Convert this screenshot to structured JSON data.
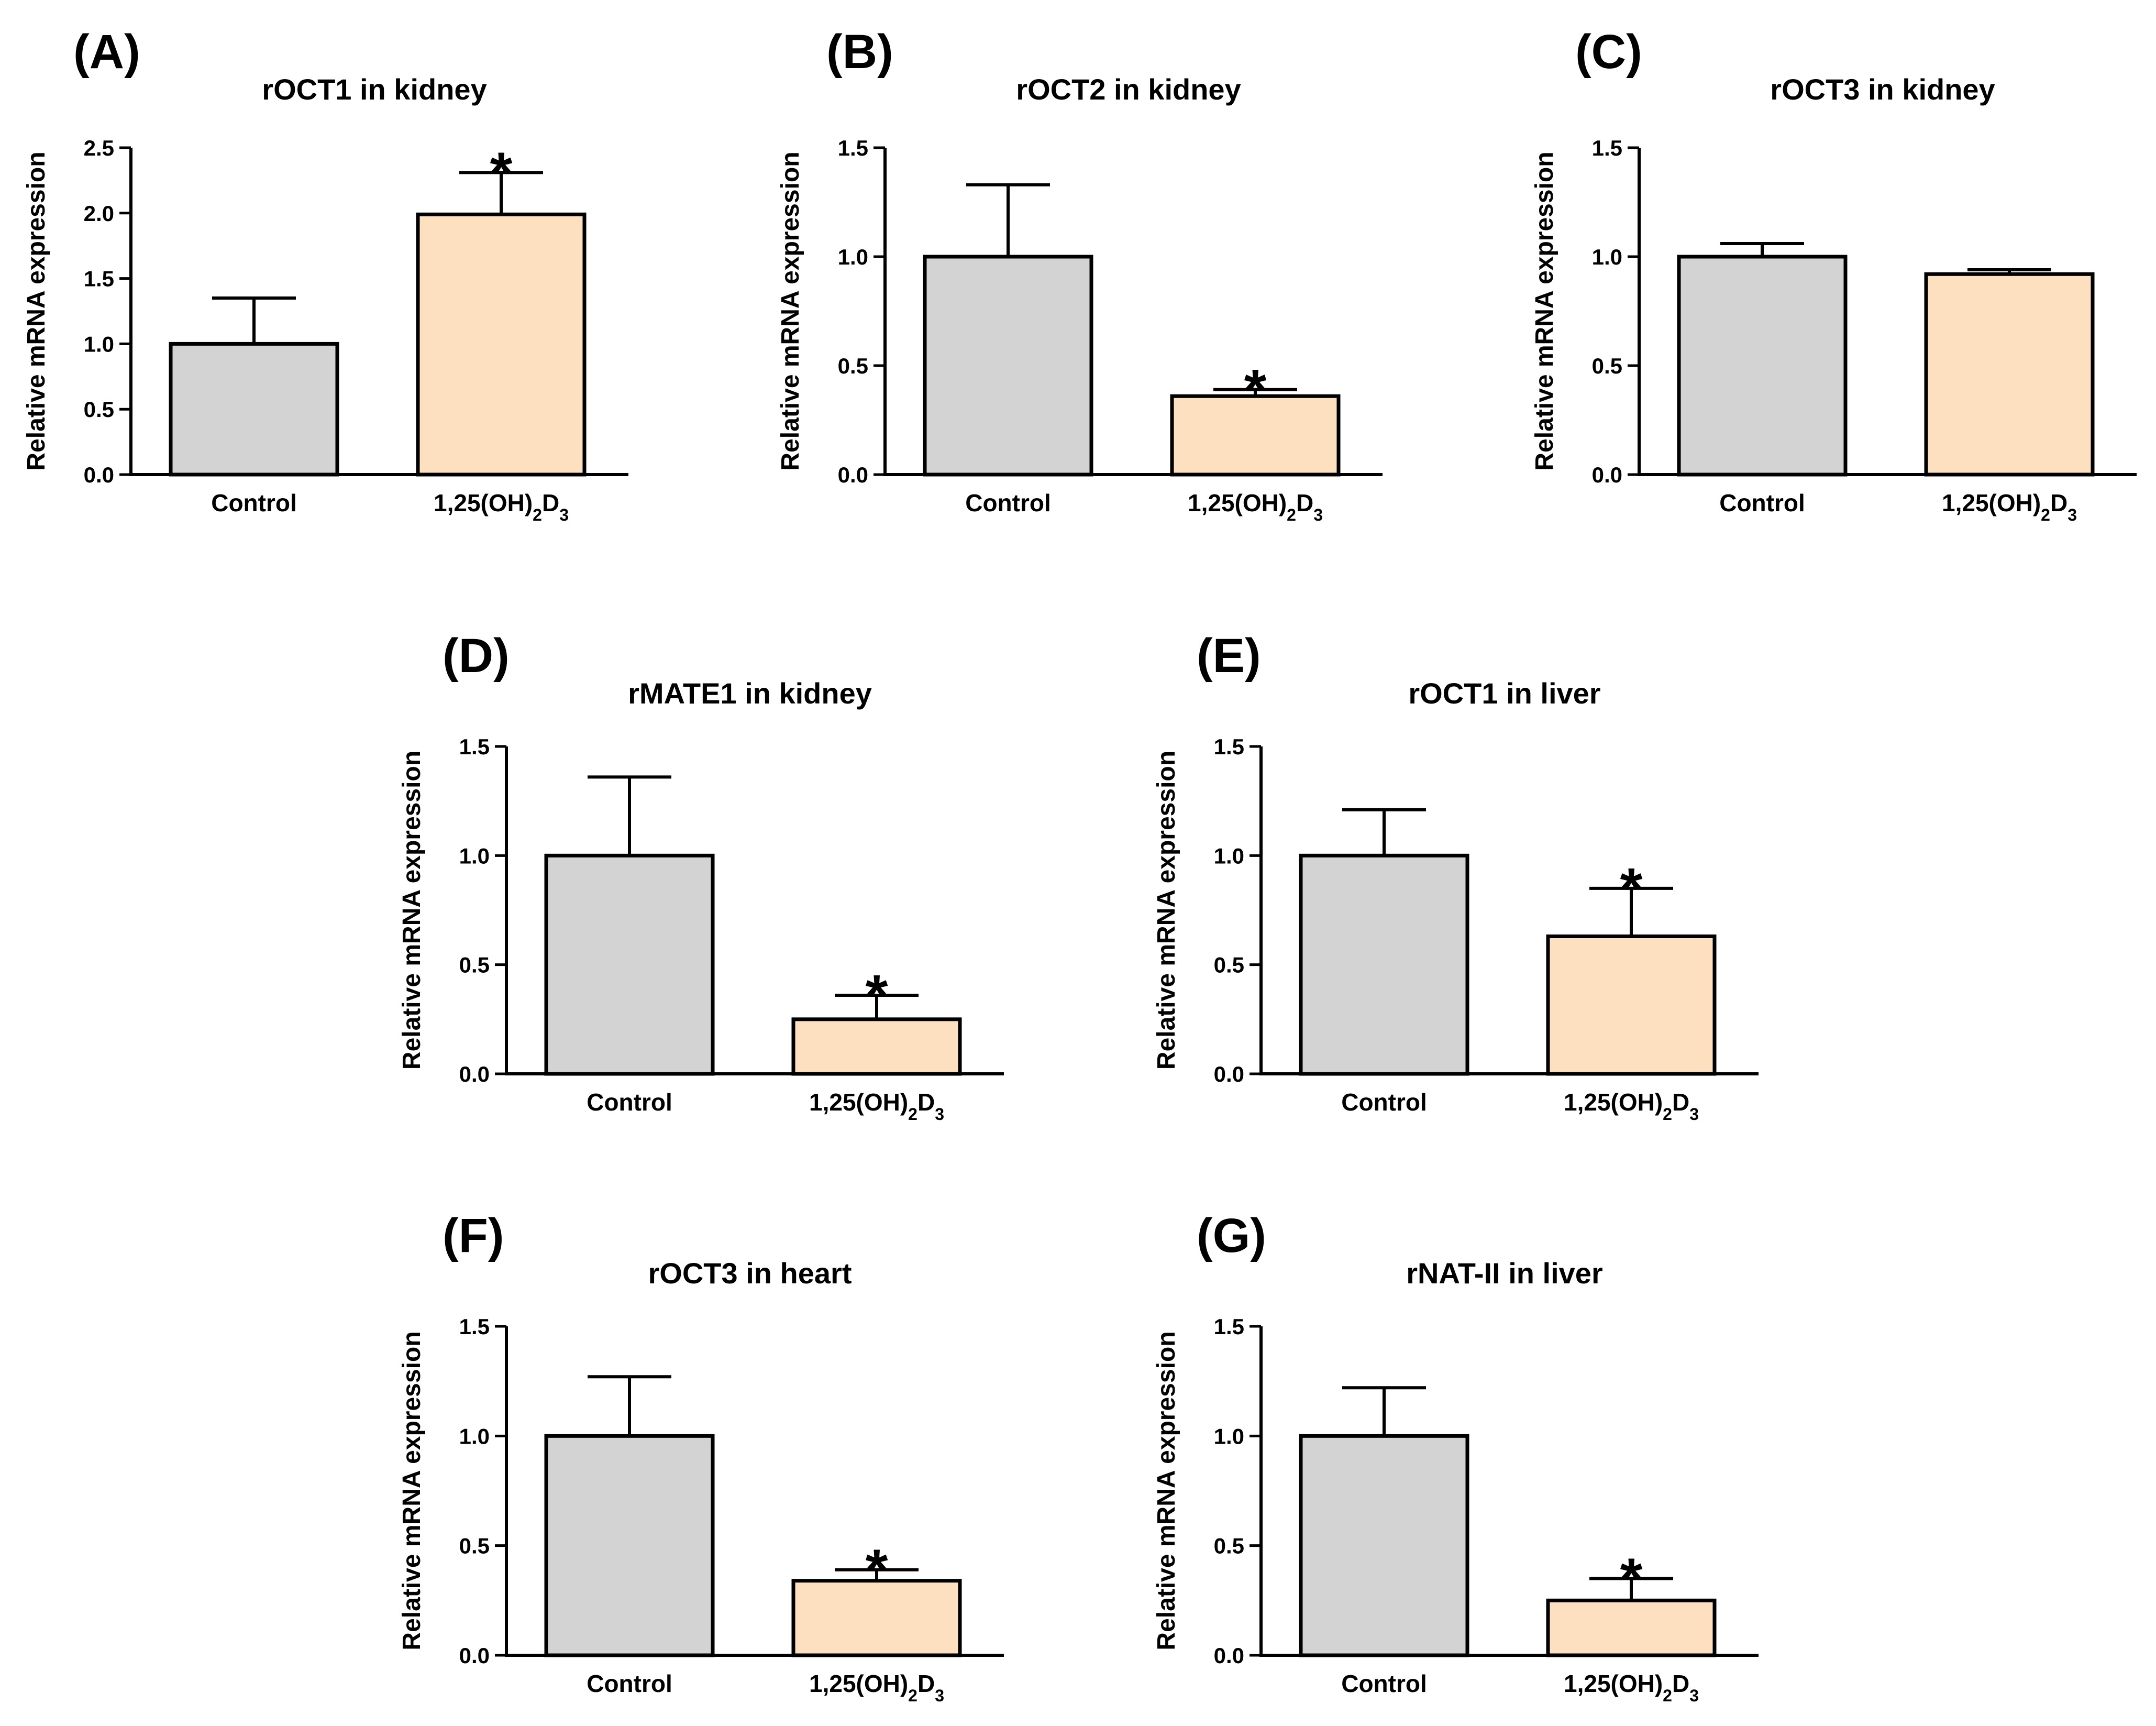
{
  "chart_data": [
    {
      "panel": "(A)",
      "type": "bar",
      "title": "rOCT1 in kidney",
      "ylabel": "Relative mRNA expression",
      "categories": [
        "Control",
        "1,25(OH)2D3"
      ],
      "values": [
        1.0,
        1.99
      ],
      "errors": [
        0.35,
        0.32
      ],
      "significance": [
        "",
        "*"
      ],
      "ylim": [
        0,
        2.5
      ],
      "yticks": [
        "0.0",
        "0.5",
        "1.0",
        "1.5",
        "2.0",
        "2.5"
      ],
      "colors": [
        "#d3d3d3",
        "#fde0c0"
      ]
    },
    {
      "panel": "(B)",
      "type": "bar",
      "title": "rOCT2 in kidney",
      "ylabel": "Relative mRNA expression",
      "categories": [
        "Control",
        "1,25(OH)2D3"
      ],
      "values": [
        1.0,
        0.36
      ],
      "errors": [
        0.33,
        0.03
      ],
      "significance": [
        "",
        "*"
      ],
      "ylim": [
        0,
        1.5
      ],
      "yticks": [
        "0.0",
        "0.5",
        "1.0",
        "1.5"
      ],
      "colors": [
        "#d3d3d3",
        "#fde0c0"
      ]
    },
    {
      "panel": "(C)",
      "type": "bar",
      "title": "rOCT3 in kidney",
      "ylabel": "Relative mRNA expression",
      "categories": [
        "Control",
        "1,25(OH)2D3"
      ],
      "values": [
        1.0,
        0.92
      ],
      "errors": [
        0.06,
        0.02
      ],
      "significance": [
        "",
        ""
      ],
      "ylim": [
        0,
        1.5
      ],
      "yticks": [
        "0.0",
        "0.5",
        "1.0",
        "1.5"
      ],
      "colors": [
        "#d3d3d3",
        "#fde0c0"
      ]
    },
    {
      "panel": "(D)",
      "type": "bar",
      "title": "rMATE1 in kidney",
      "ylabel": "Relative mRNA expression",
      "categories": [
        "Control",
        "1,25(OH)2D3"
      ],
      "values": [
        1.0,
        0.25
      ],
      "errors": [
        0.36,
        0.11
      ],
      "significance": [
        "",
        "*"
      ],
      "ylim": [
        0,
        1.5
      ],
      "yticks": [
        "0.0",
        "0.5",
        "1.0",
        "1.5"
      ],
      "colors": [
        "#d3d3d3",
        "#fde0c0"
      ]
    },
    {
      "panel": "(E)",
      "type": "bar",
      "title": "rOCT1 in liver",
      "ylabel": "Relative mRNA expression",
      "categories": [
        "Control",
        "1,25(OH)2D3"
      ],
      "values": [
        1.0,
        0.63
      ],
      "errors": [
        0.21,
        0.22
      ],
      "significance": [
        "",
        "*"
      ],
      "ylim": [
        0,
        1.5
      ],
      "yticks": [
        "0.0",
        "0.5",
        "1.0",
        "1.5"
      ],
      "colors": [
        "#d3d3d3",
        "#fde0c0"
      ]
    },
    {
      "panel": "(F)",
      "type": "bar",
      "title": "rOCT3 in heart",
      "ylabel": "Relative mRNA expression",
      "categories": [
        "Control",
        "1,25(OH)2D3"
      ],
      "values": [
        1.0,
        0.34
      ],
      "errors": [
        0.27,
        0.05
      ],
      "significance": [
        "",
        "*"
      ],
      "ylim": [
        0,
        1.5
      ],
      "yticks": [
        "0.0",
        "0.5",
        "1.0",
        "1.5"
      ],
      "colors": [
        "#d3d3d3",
        "#fde0c0"
      ]
    },
    {
      "panel": "(G)",
      "type": "bar",
      "title": "rNAT-II in liver",
      "ylabel": "Relative mRNA expression",
      "categories": [
        "Control",
        "1,25(OH)2D3"
      ],
      "values": [
        1.0,
        0.25
      ],
      "errors": [
        0.22,
        0.1
      ],
      "significance": [
        "",
        "*"
      ],
      "ylim": [
        0,
        1.5
      ],
      "yticks": [
        "0.0",
        "0.5",
        "1.0",
        "1.5"
      ],
      "colors": [
        "#d3d3d3",
        "#fde0c0"
      ]
    }
  ]
}
